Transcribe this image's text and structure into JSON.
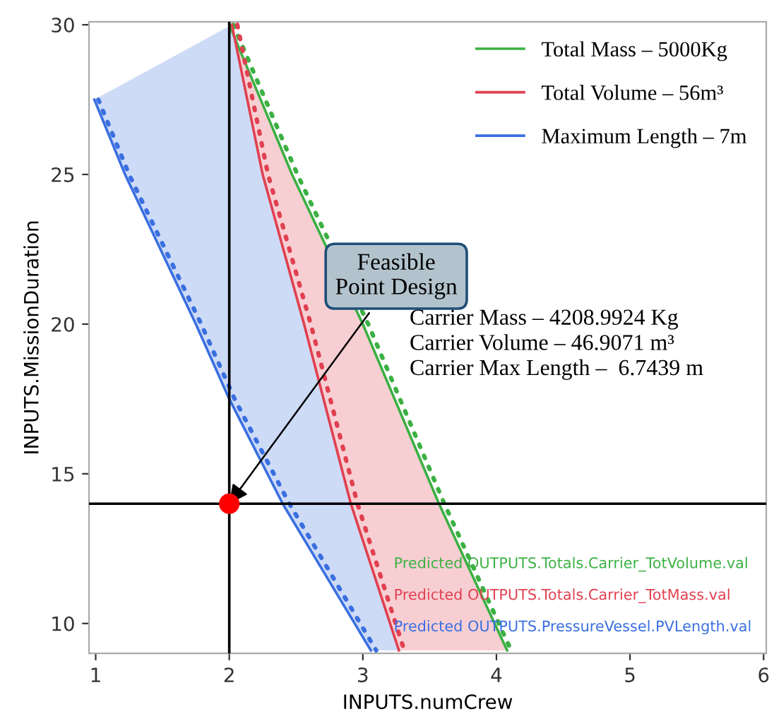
{
  "chart_data": {
    "type": "line",
    "xlabel": "INPUTS.numCrew",
    "ylabel": "INPUTS.MissionDuration",
    "xlim": [
      0.95,
      6.02
    ],
    "ylim": [
      9.0,
      30.1
    ],
    "xticks": [
      1,
      2,
      3,
      4,
      5,
      6
    ],
    "yticks": [
      10,
      15,
      20,
      25,
      30
    ],
    "grid": false,
    "legend": "top right",
    "series": [
      {
        "name": "Total Mass – 5000Kg",
        "color": "#3cb043",
        "line_style": "solid",
        "x": [
          2.0,
          2.47,
          3.0,
          3.57,
          4.08
        ],
        "values": [
          30,
          25,
          20,
          14,
          9.1
        ]
      },
      {
        "color": "#3cb043",
        "line_style": "dotted",
        "x": [
          2.03,
          2.51,
          3.04,
          3.61,
          4.11
        ],
        "values": [
          30,
          25,
          20,
          14,
          9.1
        ]
      },
      {
        "name": "Total Volume – 56m³",
        "color": "#e04050",
        "line_style": "solid",
        "x": [
          2.02,
          2.25,
          2.56,
          2.91,
          3.27
        ],
        "values": [
          30,
          25,
          20,
          14,
          9.1
        ]
      },
      {
        "color": "#e04050",
        "line_style": "dotted",
        "x": [
          2.06,
          2.29,
          2.61,
          2.96,
          3.31
        ],
        "values": [
          30,
          25,
          20,
          14,
          9.1
        ]
      },
      {
        "name": "Maximum Length – 7m",
        "color": "#3a6fe0",
        "line_style": "solid",
        "x": [
          0.99,
          1.22,
          1.75,
          2.0,
          2.4,
          3.06
        ],
        "values": [
          27.5,
          25,
          20,
          17.5,
          14,
          9.1
        ]
      },
      {
        "color": "#3a6fe0",
        "line_style": "dotted",
        "x": [
          1.02,
          1.25,
          1.79,
          2.04,
          2.45,
          3.1
        ],
        "values": [
          27.5,
          25,
          20,
          17.5,
          14,
          9.1
        ]
      },
      {
        "type": "scatter",
        "color": "#ff0000",
        "marker": "circle",
        "x": [
          2
        ],
        "values": [
          14
        ]
      }
    ],
    "ref_lines": [
      {
        "axis": "x",
        "value": 2,
        "color": "#000000"
      },
      {
        "axis": "y",
        "value": 14,
        "color": "#000000"
      }
    ],
    "annotations": [
      {
        "text": "Feasible\nPoint Design",
        "x": 2,
        "y": 14
      },
      "Carrier Mass – 4208.9924 Kg\nCarrier Volume – 46.9071 m³\nCarrier Max Length –  6.7439 m",
      "Predicted OUTPUTS.Totals.Carrier_TotMass.val",
      "Predicted OUTPUTS.PressureVessel.PVLength.val",
      "Predicted OUTPUTS.Totals.Carrier_TotVolume.val"
    ]
  }
}
